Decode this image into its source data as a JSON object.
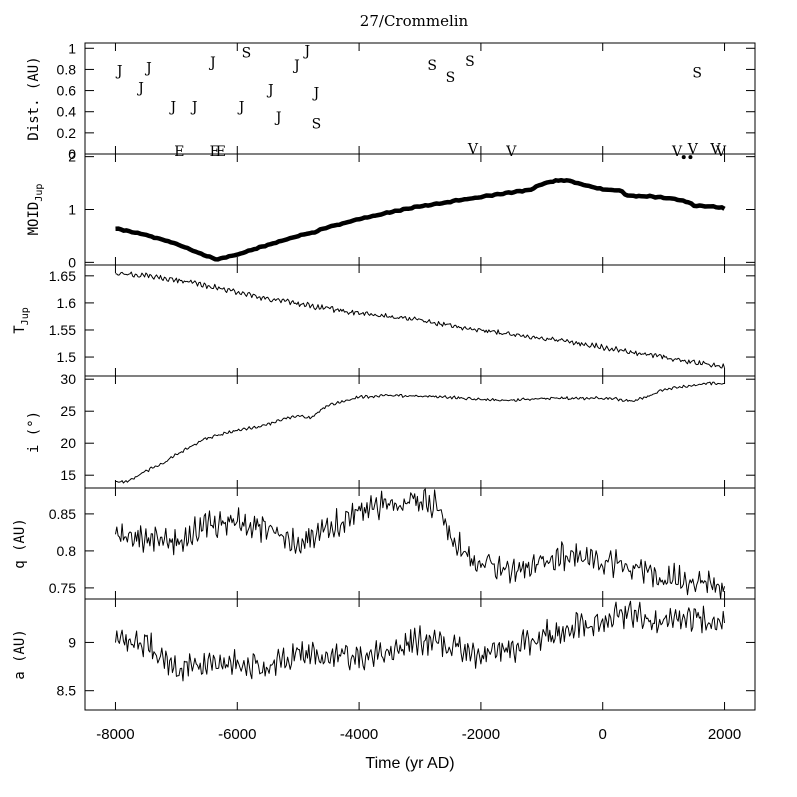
{
  "chart_data": {
    "title": "27/Crommelin",
    "type": "line",
    "shared_x": {
      "label": "Time (yr AD)",
      "range": [
        -8500,
        2500
      ],
      "ticks": [
        -8000,
        -6000,
        -4000,
        -2000,
        0,
        2000
      ],
      "tick_labels": [
        "-8000",
        "-6000",
        "-4000",
        "-2000",
        "0",
        "2000"
      ]
    },
    "panels": [
      {
        "id": "dist",
        "type": "scatter",
        "ylabel": "Dist. (AU)",
        "ylim": [
          0,
          1.05
        ],
        "ticks": [
          0,
          0.2,
          0.4,
          0.6,
          0.8,
          1
        ],
        "tick_labels": [
          "0",
          "0.2",
          "0.4",
          "0.6",
          "0.8",
          "1"
        ],
        "encounters": [
          {
            "x": -7930,
            "y": 0.79,
            "label": "J"
          },
          {
            "x": -7450,
            "y": 0.82,
            "label": "J"
          },
          {
            "x": -7580,
            "y": 0.63,
            "label": "J"
          },
          {
            "x": -7050,
            "y": 0.45,
            "label": "J"
          },
          {
            "x": -6700,
            "y": 0.45,
            "label": "J"
          },
          {
            "x": -6400,
            "y": 0.87,
            "label": "J"
          },
          {
            "x": -5930,
            "y": 0.45,
            "label": "J"
          },
          {
            "x": -5450,
            "y": 0.61,
            "label": "J"
          },
          {
            "x": -5320,
            "y": 0.35,
            "label": "J"
          },
          {
            "x": -5020,
            "y": 0.84,
            "label": "J"
          },
          {
            "x": -4850,
            "y": 0.98,
            "label": "J"
          },
          {
            "x": -4700,
            "y": 0.58,
            "label": "J"
          },
          {
            "x": -5850,
            "y": 0.96,
            "label": "S"
          },
          {
            "x": -4700,
            "y": 0.29,
            "label": "S"
          },
          {
            "x": -2800,
            "y": 0.84,
            "label": "S"
          },
          {
            "x": -2500,
            "y": 0.73,
            "label": "S"
          },
          {
            "x": -2180,
            "y": 0.88,
            "label": "S"
          },
          {
            "x": 1550,
            "y": 0.77,
            "label": "S"
          },
          {
            "x": -6950,
            "y": 0.03,
            "label": "E"
          },
          {
            "x": -6370,
            "y": 0.03,
            "label": "E"
          },
          {
            "x": -6270,
            "y": 0.03,
            "label": "E"
          },
          {
            "x": -2130,
            "y": 0.05,
            "label": "V"
          },
          {
            "x": -1500,
            "y": 0.03,
            "label": "V"
          },
          {
            "x": 1220,
            "y": 0.03,
            "label": "V"
          },
          {
            "x": 1480,
            "y": 0.05,
            "label": "V"
          },
          {
            "x": 1850,
            "y": 0.05,
            "label": "V"
          },
          {
            "x": 1940,
            "y": 0.03,
            "label": "V"
          }
        ],
        "dots": [
          {
            "x": 1330,
            "y": -0.03
          },
          {
            "x": 1440,
            "y": -0.03
          }
        ]
      },
      {
        "id": "moid",
        "type": "line",
        "ylabel": "MOID",
        "ylabel_sub": "Jup",
        "ylim": [
          -0.05,
          2.05
        ],
        "ticks": [
          0,
          1,
          2
        ],
        "tick_labels": [
          "0",
          "1",
          "2"
        ],
        "style": "thick",
        "x": [
          -8000,
          -7500,
          -7000,
          -6500,
          -6350,
          -6000,
          -5500,
          -5000,
          -4700,
          -4650,
          -4000,
          -3500,
          -3000,
          -2500,
          -2000,
          -1500,
          -1200,
          -1000,
          -800,
          -600,
          -300,
          0,
          300,
          400,
          800,
          1000,
          1200,
          1400,
          1500,
          1800,
          2000
        ],
        "values": [
          0.64,
          0.52,
          0.35,
          0.12,
          0.05,
          0.15,
          0.33,
          0.5,
          0.58,
          0.62,
          0.82,
          0.95,
          1.06,
          1.15,
          1.24,
          1.32,
          1.37,
          1.48,
          1.54,
          1.56,
          1.46,
          1.38,
          1.36,
          1.26,
          1.25,
          1.22,
          1.2,
          1.14,
          1.07,
          1.06,
          1.02
        ]
      },
      {
        "id": "tjup",
        "type": "line",
        "ylabel": "T",
        "ylabel_sub": "Jup",
        "ylim": [
          1.465,
          1.67
        ],
        "ticks": [
          1.5,
          1.55,
          1.6,
          1.65
        ],
        "tick_labels": [
          "1.5",
          "1.55",
          "1.6",
          "1.65"
        ],
        "x": [
          -8000,
          -7500,
          -7000,
          -6500,
          -6000,
          -5500,
          -5000,
          -4500,
          -4000,
          -3500,
          -3000,
          -2500,
          -2000,
          -1500,
          -1000,
          -500,
          0,
          500,
          1000,
          1500,
          1800,
          2000
        ],
        "values": [
          1.655,
          1.65,
          1.643,
          1.632,
          1.62,
          1.608,
          1.598,
          1.589,
          1.581,
          1.575,
          1.568,
          1.558,
          1.55,
          1.542,
          1.535,
          1.527,
          1.518,
          1.508,
          1.5,
          1.49,
          1.485,
          1.483
        ]
      },
      {
        "id": "incl",
        "type": "line",
        "ylabel": "i (°)",
        "ylim": [
          13,
          30.5
        ],
        "ticks": [
          15,
          20,
          25,
          30
        ],
        "tick_labels": [
          "15",
          "20",
          "25",
          "30"
        ],
        "x": [
          -8000,
          -7800,
          -7500,
          -7200,
          -7000,
          -6500,
          -6000,
          -5500,
          -5300,
          -5000,
          -4800,
          -4500,
          -4000,
          -3500,
          -3000,
          -2500,
          -2000,
          -1500,
          -1000,
          -500,
          0,
          300,
          500,
          800,
          1000,
          1200,
          1500,
          1800,
          2000
        ],
        "values": [
          14.0,
          14.0,
          15.6,
          17.0,
          18.2,
          20.8,
          22.0,
          22.9,
          23.7,
          24.2,
          24.0,
          26.0,
          27.2,
          27.5,
          27.3,
          27.2,
          26.8,
          26.7,
          27.0,
          27.0,
          27.1,
          26.8,
          26.5,
          27.6,
          28.3,
          28.8,
          29.1,
          29.4,
          29.2
        ]
      },
      {
        "id": "q",
        "type": "line",
        "ylabel": "q (AU)",
        "ylim": [
          0.735,
          0.885
        ],
        "ticks": [
          0.75,
          0.8,
          0.85
        ],
        "tick_labels": [
          "0.75",
          "0.8",
          "0.85"
        ],
        "x": [
          -8000,
          -7500,
          -7000,
          -6500,
          -6000,
          -5500,
          -5000,
          -4500,
          -4000,
          -3500,
          -3000,
          -2700,
          -2500,
          -2200,
          -2000,
          -1500,
          -1000,
          -500,
          0,
          500,
          1000,
          1500,
          1800,
          2000
        ],
        "values": [
          0.822,
          0.818,
          0.81,
          0.835,
          0.84,
          0.83,
          0.81,
          0.83,
          0.855,
          0.865,
          0.868,
          0.86,
          0.82,
          0.795,
          0.782,
          0.775,
          0.788,
          0.795,
          0.785,
          0.775,
          0.765,
          0.758,
          0.755,
          0.745
        ]
      },
      {
        "id": "a",
        "type": "line",
        "ylabel": "a (AU)",
        "ylim": [
          8.3,
          9.45
        ],
        "ticks": [
          8.5,
          9
        ],
        "tick_labels": [
          "8.5",
          "9"
        ],
        "x": [
          -8000,
          -7500,
          -7000,
          -6500,
          -6000,
          -5500,
          -5000,
          -4500,
          -4000,
          -3500,
          -3000,
          -2500,
          -2000,
          -1500,
          -1000,
          -500,
          0,
          500,
          1000,
          1500,
          2000
        ],
        "values": [
          8.98,
          9.0,
          8.72,
          8.78,
          8.8,
          8.72,
          8.88,
          8.86,
          8.85,
          8.9,
          9.02,
          8.98,
          8.84,
          8.94,
          9.06,
          9.16,
          9.22,
          9.3,
          9.2,
          9.26,
          9.18
        ]
      }
    ]
  }
}
